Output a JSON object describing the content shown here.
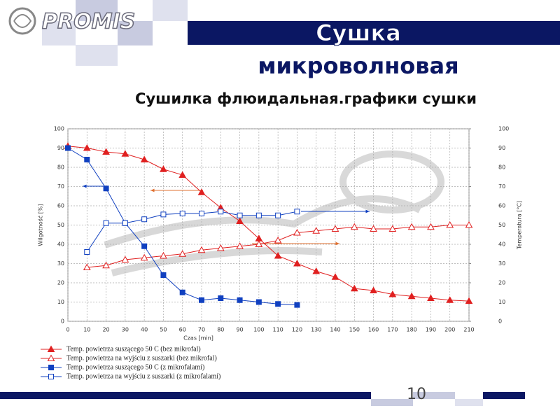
{
  "slide": {
    "logo": "PROMIS",
    "title_line1": "Сушка",
    "title_line2": "микроволновая",
    "subtitle": "Сушилка флюидальная.графики сушки",
    "page_number": "10"
  },
  "chart_data": {
    "type": "line",
    "xlabel": "Czas [min]",
    "ylabel": "Wilgotność [%]",
    "y2label": "Temperatura [°C]",
    "x": [
      0,
      10,
      20,
      30,
      40,
      50,
      60,
      70,
      80,
      90,
      100,
      110,
      120,
      130,
      140,
      150,
      160,
      170,
      180,
      190,
      200,
      210
    ],
    "xlim": [
      0,
      210
    ],
    "xticks": [
      0,
      10,
      20,
      30,
      40,
      50,
      60,
      70,
      80,
      90,
      100,
      110,
      120,
      130,
      140,
      150,
      160,
      170,
      180,
      190,
      200,
      210
    ],
    "ylim": [
      0,
      100
    ],
    "yticks": [
      0,
      10,
      20,
      30,
      40,
      50,
      60,
      70,
      80,
      90,
      100
    ],
    "y2lim": [
      0,
      100
    ],
    "y2ticks": [
      0,
      10,
      20,
      30,
      40,
      50,
      60,
      70,
      80,
      90,
      100
    ],
    "grid": true,
    "series": [
      {
        "name": "Temp. powietrza suszącego 50 C (bez mikrofal)",
        "color": "#e02020",
        "marker": "triangle",
        "filled": true,
        "values": [
          91,
          90,
          88,
          87,
          84,
          79,
          76,
          67,
          59,
          52,
          43,
          34,
          30,
          26,
          23,
          17,
          16,
          14,
          13,
          12,
          11,
          10.5
        ]
      },
      {
        "name": "Temp. powietrza na wyjściu z suszarki (bez mikrofal)",
        "color": "#e02020",
        "marker": "triangle",
        "filled": false,
        "axis": "y2",
        "values": [
          null,
          28,
          29,
          32,
          33,
          34,
          35,
          37,
          38,
          39,
          40,
          42,
          46,
          47,
          48,
          49,
          48,
          48,
          49,
          49,
          50,
          50
        ]
      },
      {
        "name": "Temp. powietrza suszącego 50 C (z mikrofalami)",
        "color": "#1040c0",
        "marker": "square",
        "filled": true,
        "values": [
          90,
          84,
          69,
          51,
          39,
          24,
          15,
          11,
          12,
          11,
          10,
          9,
          8.5,
          null,
          null,
          null,
          null,
          null,
          null,
          null,
          null,
          null
        ]
      },
      {
        "name": "Temp. powietrza na wyjściu z suszarki (z mikrofalami)",
        "color": "#1040c0",
        "marker": "square",
        "filled": false,
        "axis": "y2",
        "values": [
          null,
          36,
          51,
          51,
          53,
          55.5,
          56,
          56,
          57,
          55,
          55,
          55,
          57,
          null,
          null,
          null,
          null,
          null,
          null,
          null,
          null,
          null
        ]
      }
    ]
  }
}
